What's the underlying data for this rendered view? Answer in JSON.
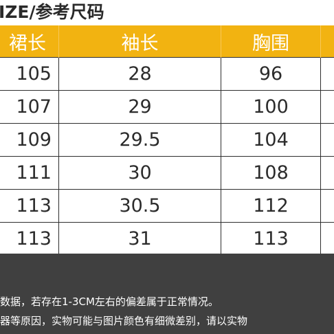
{
  "title": "IZE/参考尺码",
  "table": {
    "headers": [
      "裙长",
      "袖长",
      "胸围",
      ""
    ],
    "rows": [
      [
        "105",
        "28",
        "96",
        ""
      ],
      [
        "107",
        "29",
        "100",
        ""
      ],
      [
        "109",
        "29.5",
        "104",
        ""
      ],
      [
        "111",
        "30",
        "108",
        ""
      ],
      [
        "113",
        "30.5",
        "112",
        ""
      ],
      [
        "113",
        "31",
        "113",
        ""
      ]
    ]
  },
  "notes": [
    "数据，若存在1-3CM左右的偏差属于正常情况。",
    "器等原因，实物可能与图片颜色有细微差别，请以实物"
  ],
  "colors": {
    "header_bg": "#f2b311",
    "note_bg": "#404040"
  }
}
